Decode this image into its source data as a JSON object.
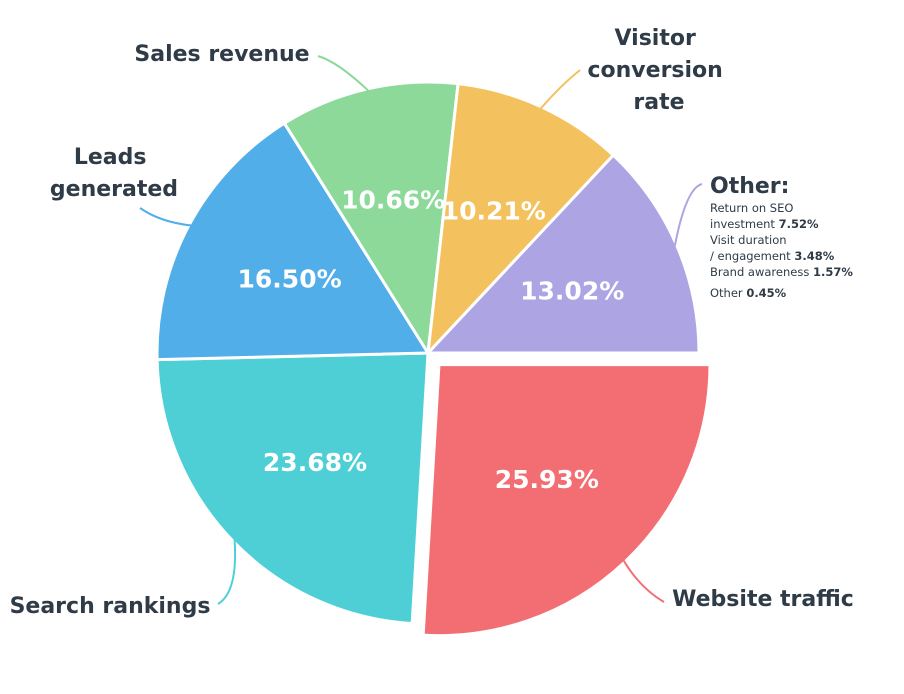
{
  "chart_data": {
    "type": "pie",
    "slices": [
      {
        "label": "Website traffic",
        "value": 25.93,
        "display": "25.93%",
        "color": "#f26e73",
        "exploded": true
      },
      {
        "label": "Search rankings",
        "value": 23.68,
        "display": "23.68%",
        "color": "#4ecfd6"
      },
      {
        "label": "Leads generated",
        "value": 16.5,
        "display": "16.50%",
        "color": "#52aee9"
      },
      {
        "label": "Sales revenue",
        "value": 10.66,
        "display": "10.66%",
        "color": "#8cd99a"
      },
      {
        "label": "Visitor conversion rate",
        "value": 10.21,
        "display": "10.21%",
        "color": "#f3c25e"
      },
      {
        "label": "Other:",
        "value": 13.02,
        "display": "13.02%",
        "color": "#ada4e4"
      }
    ],
    "other_breakdown": [
      {
        "label": "Return on SEO investment",
        "value": "7.52%"
      },
      {
        "label": "Visit duration / engagement",
        "value": "3.48%"
      },
      {
        "label": "Brand awareness",
        "value": "1.57%"
      },
      {
        "label": "Other",
        "value": "0.45%"
      }
    ]
  }
}
